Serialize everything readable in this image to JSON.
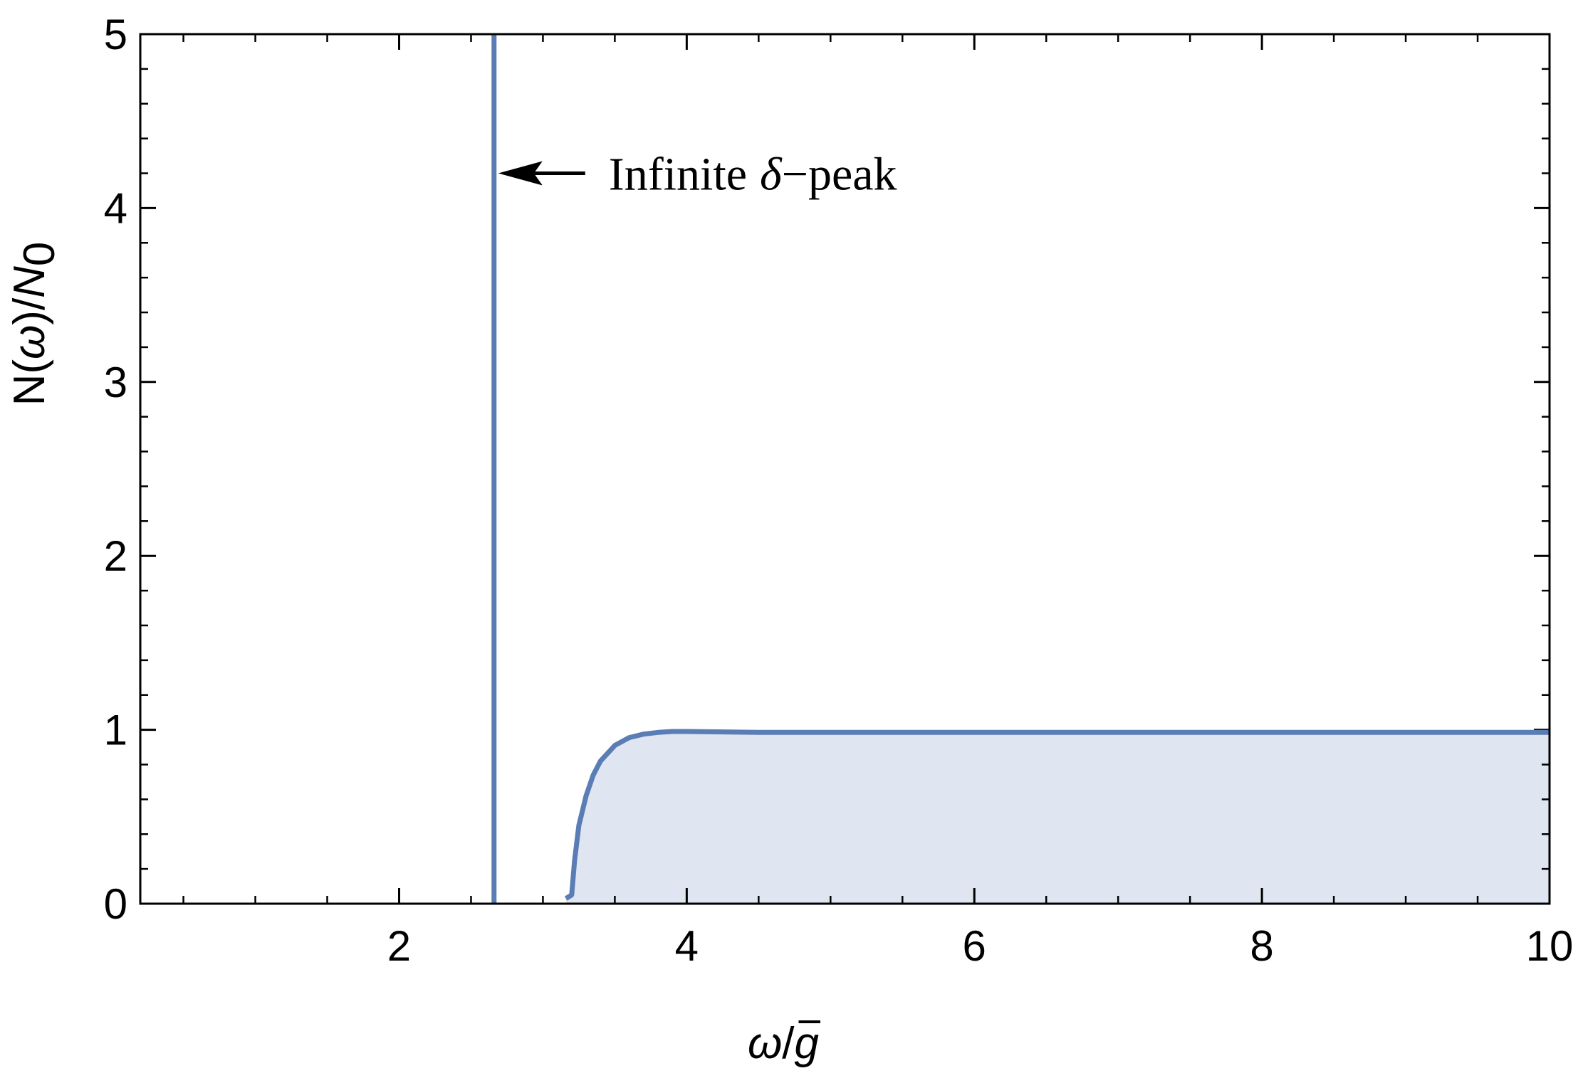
{
  "chart_data": {
    "type": "area",
    "xlabel": {
      "num": "ω",
      "slash": "/",
      "den": "g"
    },
    "ylabel": {
      "main": "N(",
      "omega": "ω",
      "mid": ")/",
      "n": "N",
      "sub": "0"
    },
    "xlim": [
      0.2,
      10
    ],
    "ylim": [
      0,
      5
    ],
    "x_ticks": [
      2,
      4,
      6,
      8,
      10
    ],
    "x_tick_labels": [
      "2",
      "4",
      "6",
      "8",
      "10"
    ],
    "y_ticks": [
      0,
      1,
      2,
      3,
      4,
      5
    ],
    "y_tick_labels": [
      "0",
      "1",
      "2",
      "3",
      "4",
      "5"
    ],
    "x_minor_step": 0.5,
    "y_minor_step": 0.2,
    "grid": false,
    "colors": {
      "line": "#5b7db5",
      "fill": "#dfe6f1",
      "frame": "#000000"
    },
    "series": [
      {
        "x": [
          3.16,
          3.18,
          3.2,
          3.22,
          3.25,
          3.3,
          3.35,
          3.4,
          3.5,
          3.6,
          3.7,
          3.8,
          3.9,
          4.0,
          4.5,
          5.0,
          6.0,
          7.0,
          8.0,
          9.0,
          10.0
        ],
        "y": [
          0.03,
          0.04,
          0.05,
          0.25,
          0.45,
          0.62,
          0.74,
          0.82,
          0.91,
          0.955,
          0.975,
          0.985,
          0.99,
          0.99,
          0.985,
          0.985,
          0.985,
          0.985,
          0.985,
          0.985,
          0.985
        ],
        "filled": true
      }
    ],
    "delta_peak_x": 2.66,
    "annotation": {
      "word": "Infinite",
      "delta": "δ",
      "suffix": "−peak",
      "x": 2.66,
      "y": 4.2
    }
  }
}
